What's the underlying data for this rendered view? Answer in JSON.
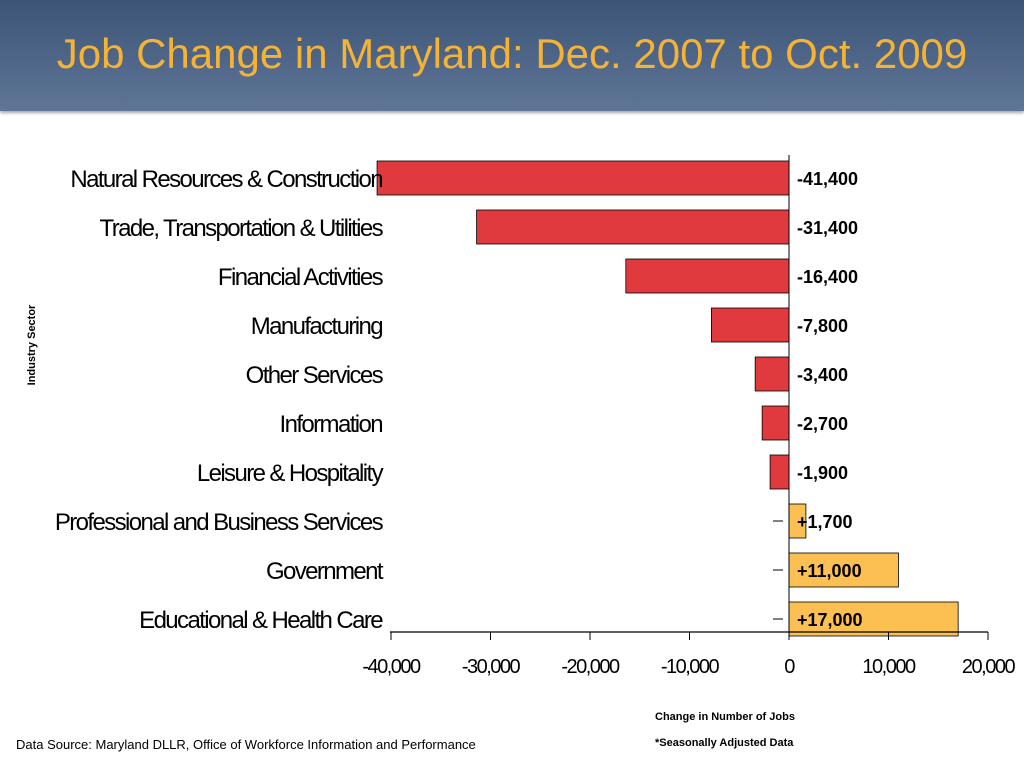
{
  "page": {
    "title": "Job Change in Maryland: Dec. 2007 to Oct. 2009",
    "source": "Data Source: Maryland DLLR, Office of Workforce Information and Performance",
    "footnote": "*Seasonally Adjusted Data"
  },
  "colors": {
    "title_band": "#4a6285",
    "title_text": "#f5b335",
    "negative_bar": "#e03a3e",
    "positive_bar": "#fbbf52",
    "positive_label_bg": "#fbbf52"
  },
  "chart_data": {
    "type": "bar",
    "orientation": "horizontal",
    "categories": [
      "Natural Resources & Construction",
      "Trade, Transportation & Utilities",
      "Financial Activities",
      "Manufacturing",
      "Other Services",
      "Information",
      "Leisure & Hospitality",
      "Professional and Business Services",
      "Government",
      "Educational & Health Care"
    ],
    "values": [
      -41400,
      -31400,
      -16400,
      -7800,
      -3400,
      -2700,
      -1900,
      1700,
      11000,
      17000
    ],
    "data_labels": [
      "-41,400",
      "-31,400",
      "-16,400",
      "-7,800",
      "-3,400",
      "-2,700",
      "-1,900",
      "+1,700",
      "+11,000",
      "+17,000"
    ],
    "xlabel": "Change in Number of Jobs",
    "ylabel": "Industry Sector",
    "xlim": [
      -40000,
      20000
    ],
    "xticks": [
      -40000,
      -30000,
      -20000,
      -10000,
      0,
      10000,
      20000
    ],
    "xtick_labels": [
      "-40,000",
      "-30,000",
      "-20,000",
      "-10,000",
      "0",
      "10,000",
      "20,000"
    ],
    "grid": false,
    "legend": "none"
  }
}
